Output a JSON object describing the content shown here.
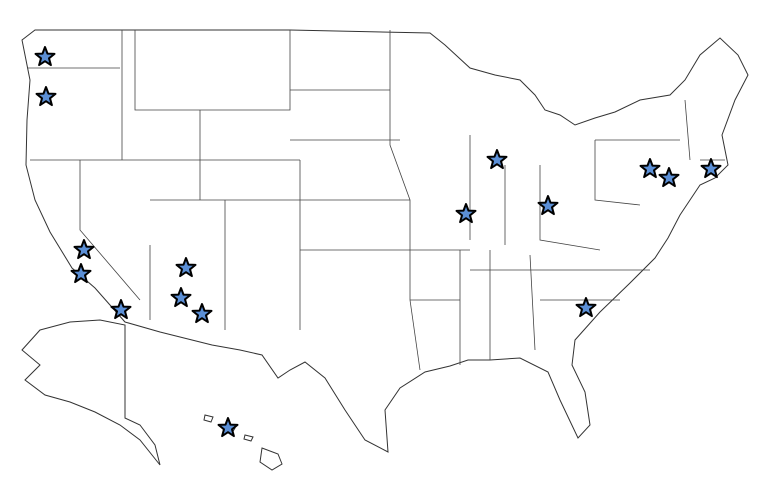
{
  "map": {
    "region": "United States",
    "marker_icon": "star-icon",
    "marker_fill": "#5b8fd6",
    "marker_stroke": "#000000",
    "marker_count": 16,
    "background": "#ffffff",
    "state_fill": "#ffffff",
    "state_stroke": "#333333"
  }
}
